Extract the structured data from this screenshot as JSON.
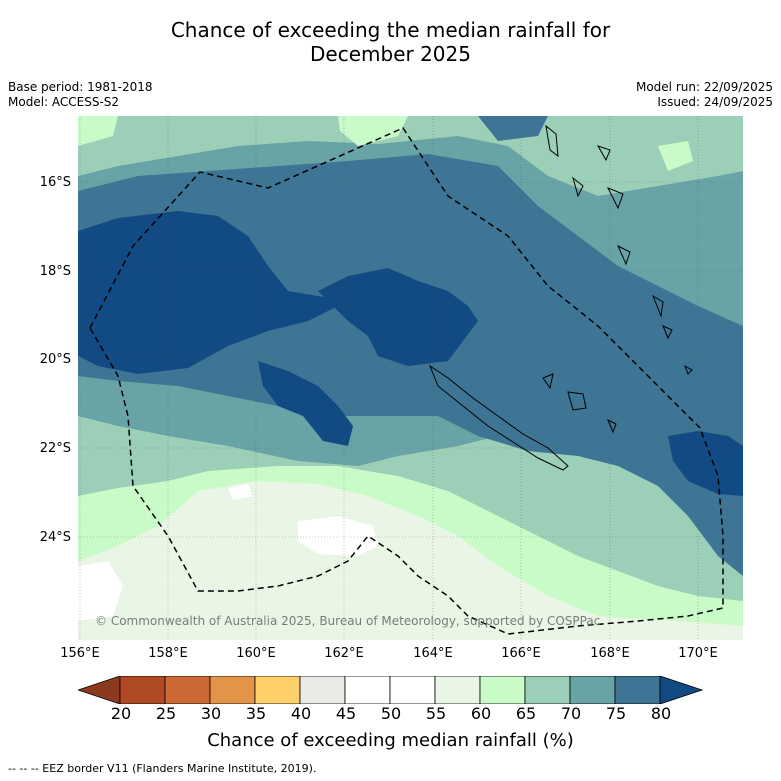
{
  "title": {
    "line1": "Chance of exceeding the median rainfall for",
    "line2": "December 2025"
  },
  "meta_left": {
    "base_period": "Base period: 1981-2018",
    "model": "Model: ACCESS-S2"
  },
  "meta_right": {
    "model_run": "Model run: 22/09/2025",
    "issued": "Issued: 24/09/2025"
  },
  "map": {
    "lat_labels": [
      "16°S",
      "18°S",
      "20°S",
      "22°S",
      "24°S"
    ],
    "lon_labels": [
      "156°E",
      "158°E",
      "160°E",
      "162°E",
      "164°E",
      "166°E",
      "168°E",
      "170°E"
    ],
    "copyright": "© Commonwealth of Australia 2025, Bureau of Meteorology, supported by COSPPac"
  },
  "colorbar": {
    "ticks": [
      "20",
      "25",
      "30",
      "35",
      "40",
      "45",
      "50",
      "55",
      "60",
      "65",
      "70",
      "75",
      "80"
    ],
    "colors": [
      "#8b3a1e",
      "#b04a24",
      "#cc6833",
      "#e29448",
      "#fdd06a",
      "#eaeae6",
      "#ffffff",
      "#ffffff",
      "#e9f6e6",
      "#c9fbc9",
      "#9ccfb7",
      "#68a3a5",
      "#3e7594",
      "#124a83"
    ],
    "title": "Chance of exceeding median rainfall (%)"
  },
  "footnote": "--  --  -- EEZ border V11 (Flanders Marine Institute, 2019).",
  "colors": {
    "band_55_60": "#e9f6e6",
    "band_60_65": "#c9fbc9",
    "band_65_70": "#9ccfb7",
    "band_70_75": "#68a3a5",
    "band_75_80": "#3e7594",
    "band_80_plus": "#124a83"
  }
}
